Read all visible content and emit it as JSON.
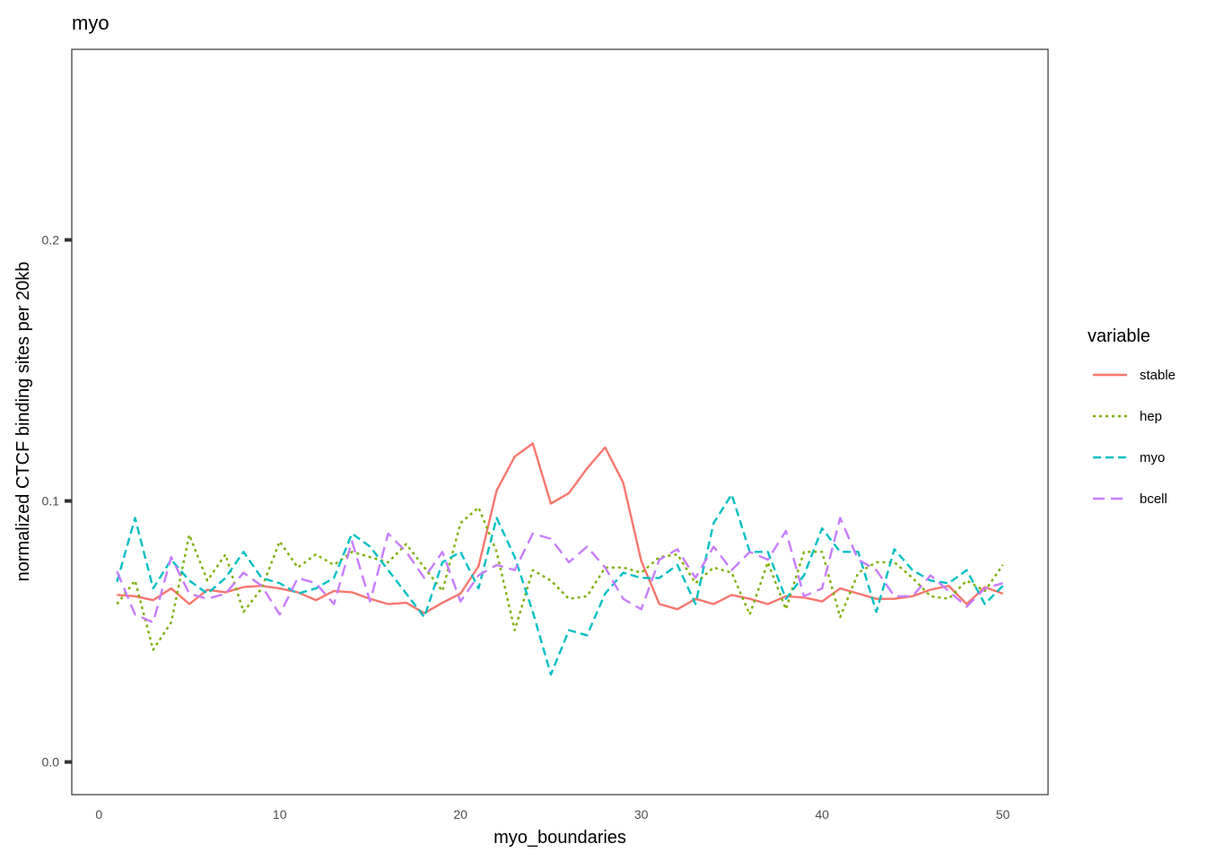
{
  "chart_data": {
    "type": "line",
    "title": "myo",
    "xlabel": "myo_boundaries",
    "ylabel": "normalized CTCF binding sites per 20kb",
    "xlim": [
      -1.5,
      52.5
    ],
    "ylim": [
      -0.0125,
      0.273
    ],
    "x_ticks": [
      0,
      10,
      20,
      30,
      40,
      50
    ],
    "y_ticks": [
      0.0,
      0.1,
      0.2
    ],
    "x_tick_labels": [
      "0",
      "10",
      "20",
      "30",
      "40",
      "50"
    ],
    "y_tick_labels": [
      "0.0",
      "0.1",
      "0.2"
    ],
    "grid": false,
    "legend_title": "variable",
    "legend_position": "right",
    "x": [
      1,
      2,
      3,
      4,
      5,
      6,
      7,
      8,
      9,
      10,
      11,
      12,
      13,
      14,
      15,
      16,
      17,
      18,
      19,
      20,
      21,
      22,
      23,
      24,
      25,
      26,
      27,
      28,
      29,
      30,
      31,
      32,
      33,
      34,
      35,
      36,
      37,
      38,
      39,
      40,
      41,
      42,
      43,
      44,
      45,
      46,
      47,
      48,
      49,
      50
    ],
    "series": [
      {
        "name": "stable",
        "color": "#F8766D",
        "dash": "solid",
        "values": [
          0.064,
          0.0635,
          0.062,
          0.0665,
          0.0605,
          0.066,
          0.065,
          0.067,
          0.0675,
          0.0665,
          0.065,
          0.062,
          0.0655,
          0.065,
          0.0625,
          0.0605,
          0.061,
          0.057,
          0.061,
          0.0645,
          0.075,
          0.104,
          0.117,
          0.122,
          0.099,
          0.103,
          0.1125,
          0.1205,
          0.107,
          0.077,
          0.0605,
          0.0585,
          0.0625,
          0.0605,
          0.064,
          0.0625,
          0.0605,
          0.0635,
          0.063,
          0.0615,
          0.0665,
          0.0645,
          0.0625,
          0.0625,
          0.0635,
          0.066,
          0.0675,
          0.0605,
          0.067,
          0.0645
        ]
      },
      {
        "name": "hep",
        "color": "#7CAE00",
        "dash": "3,4",
        "values": [
          0.0605,
          0.0695,
          0.043,
          0.0535,
          0.087,
          0.0695,
          0.0795,
          0.0575,
          0.0665,
          0.0845,
          0.0745,
          0.0795,
          0.0755,
          0.0805,
          0.0785,
          0.0765,
          0.0835,
          0.0745,
          0.0655,
          0.0915,
          0.0975,
          0.0805,
          0.0505,
          0.0735,
          0.0695,
          0.0625,
          0.0635,
          0.0745,
          0.0745,
          0.0725,
          0.0785,
          0.0795,
          0.0685,
          0.0745,
          0.0725,
          0.0565,
          0.0765,
          0.0585,
          0.0805,
          0.0805,
          0.0555,
          0.0725,
          0.0765,
          0.0765,
          0.0705,
          0.0635,
          0.0625,
          0.0695,
          0.0655,
          0.0755
        ]
      },
      {
        "name": "myo",
        "color": "#00BFC4",
        "dash": "9,5",
        "values": [
          0.069,
          0.0935,
          0.0665,
          0.0775,
          0.0695,
          0.0645,
          0.0705,
          0.0805,
          0.0705,
          0.0685,
          0.0645,
          0.0665,
          0.0705,
          0.0875,
          0.0825,
          0.0735,
          0.0645,
          0.0555,
          0.0765,
          0.0805,
          0.0665,
          0.0935,
          0.0785,
          0.0575,
          0.0335,
          0.0505,
          0.0485,
          0.0645,
          0.0725,
          0.0705,
          0.0705,
          0.0755,
          0.0605,
          0.0915,
          0.1025,
          0.0805,
          0.0805,
          0.0625,
          0.0715,
          0.0895,
          0.0805,
          0.0805,
          0.0575,
          0.0815,
          0.0735,
          0.0695,
          0.0685,
          0.0735,
          0.0605,
          0.0675
        ]
      },
      {
        "name": "bcell",
        "color": "#C77CFF",
        "dash": "13,7",
        "values": [
          0.073,
          0.0565,
          0.0535,
          0.0785,
          0.0645,
          0.0625,
          0.0645,
          0.0725,
          0.0675,
          0.0565,
          0.0705,
          0.0685,
          0.0605,
          0.0845,
          0.0615,
          0.0875,
          0.0805,
          0.0705,
          0.0805,
          0.0615,
          0.0715,
          0.0755,
          0.0735,
          0.0875,
          0.0855,
          0.0765,
          0.0825,
          0.0745,
          0.0625,
          0.0585,
          0.0775,
          0.0815,
          0.0705,
          0.0825,
          0.0735,
          0.0805,
          0.0775,
          0.0885,
          0.0635,
          0.0665,
          0.0935,
          0.0775,
          0.0735,
          0.0635,
          0.0635,
          0.0715,
          0.0655,
          0.0595,
          0.0665,
          0.0685
        ]
      }
    ]
  }
}
